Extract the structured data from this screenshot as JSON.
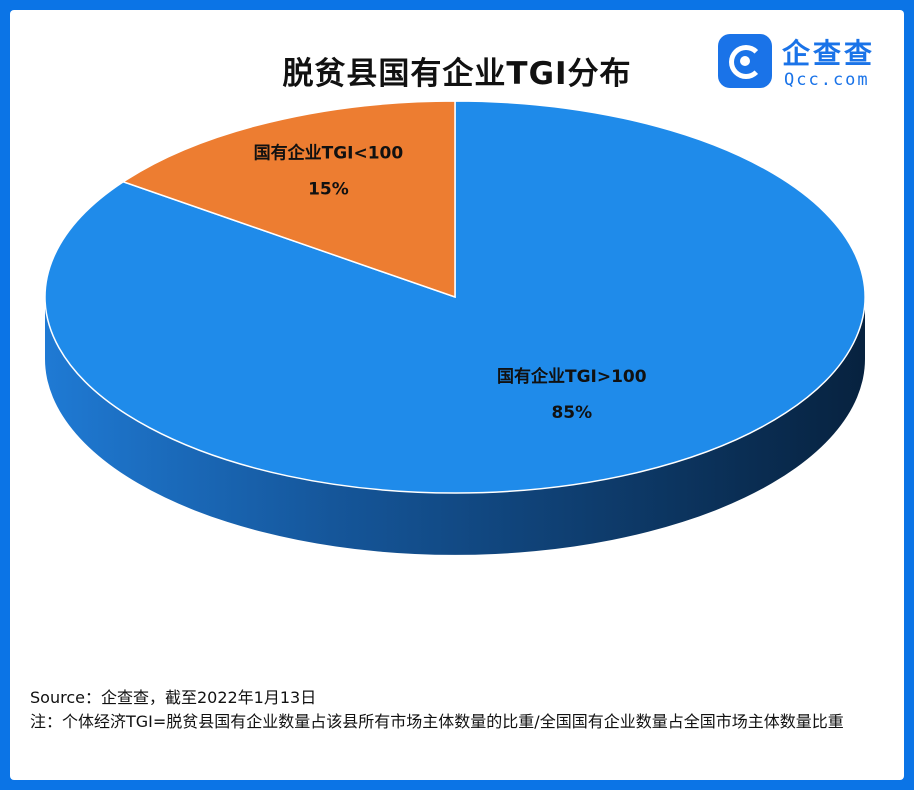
{
  "title": "脱贫县国有企业TGI分布",
  "logo": {
    "name": "企查查",
    "url": "Qcc.com",
    "icon": "qcc-magnifier-icon",
    "color": "#1a73e8"
  },
  "footer": {
    "source": "Source：企查查，截至2022年1月13日",
    "note": "注：个体经济TGI=脱贫县国有企业数量占该县所有市场主体数量的比重/全国国有企业数量占全国市场主体数量比重"
  },
  "chart_data": {
    "type": "pie",
    "style": "3d",
    "start": "top",
    "direction": "clockwise",
    "series": [
      {
        "name": "国有企业TGI>100",
        "value": 85,
        "label": "85%",
        "color": "#1f8bea",
        "side_color": "#0b3d6e"
      },
      {
        "name": "国有企业TGI<100",
        "value": 15,
        "label": "15%",
        "color": "#ed7d31",
        "side_color": "#a34f17"
      }
    ]
  }
}
